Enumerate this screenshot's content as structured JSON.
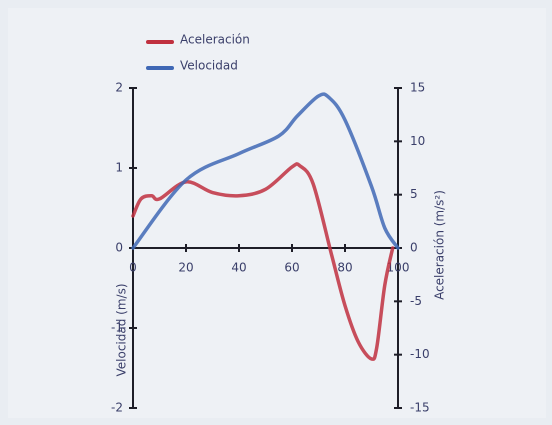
{
  "chart_data": {
    "type": "line",
    "x_label": "",
    "y_label": "Velocidad (m/s)",
    "y2_label": "Aceleración (m/s²)",
    "xlim": [
      0,
      100
    ],
    "xticks": [
      0,
      20,
      40,
      60,
      80,
      100
    ],
    "ylim": [
      -2,
      2
    ],
    "yticks": [
      -2,
      -1,
      0,
      1,
      2
    ],
    "y2lim": [
      -15,
      15
    ],
    "y2ticks": [
      -15,
      -10,
      -5,
      0,
      5,
      10,
      15
    ],
    "series": [
      {
        "name": "Aceleración",
        "color": "#c0303f",
        "axis": "y2",
        "x": [
          0,
          3,
          7,
          10,
          20,
          30,
          40,
          50,
          60,
          63,
          68,
          75,
          80,
          85,
          90,
          92,
          95,
          98
        ],
        "values": [
          3,
          4.6,
          4.9,
          4.6,
          6.2,
          5.2,
          4.9,
          5.5,
          7.6,
          7.7,
          6,
          -0.7,
          -5.4,
          -8.8,
          -10.4,
          -9.3,
          -3.5,
          0
        ]
      },
      {
        "name": "Velocidad",
        "color": "#3f68b5",
        "axis": "y",
        "x": [
          0,
          20,
          40,
          55,
          62,
          70,
          74,
          80,
          90,
          95,
          100
        ],
        "values": [
          0,
          0.85,
          1.18,
          1.4,
          1.65,
          1.9,
          1.88,
          1.6,
          0.77,
          0.25,
          0
        ]
      }
    ]
  }
}
